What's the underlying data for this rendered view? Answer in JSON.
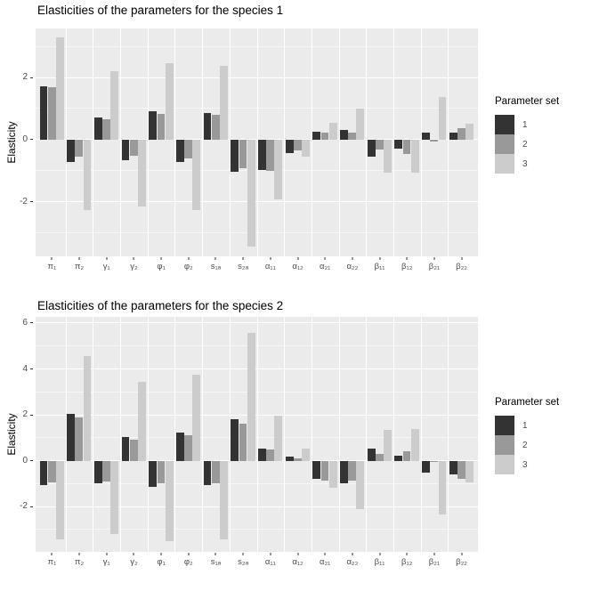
{
  "colors": {
    "panel_bg": "#EBEBEB",
    "grid": "#FFFFFF",
    "axis_text": "#4D4D4D",
    "title_text": "#000000",
    "set1": "#333333",
    "set2": "#999999",
    "set3": "#CCCCCC"
  },
  "legend": {
    "title": "Parameter set",
    "items": [
      {
        "label": "1",
        "color": "#333333"
      },
      {
        "label": "2",
        "color": "#999999"
      },
      {
        "label": "3",
        "color": "#CCCCCC"
      }
    ]
  },
  "chart_data": [
    {
      "type": "bar",
      "title": "Elasticities of the parameters for the species 1",
      "xlabel": "",
      "ylabel": "Elasticity",
      "categories": [
        "π₁",
        "π₂",
        "γ₁",
        "γ₂",
        "φ₁",
        "φ₂",
        "s₁ₐ",
        "s₂ₐ",
        "α₁₁",
        "α₁₂",
        "α₂₁",
        "α₂₂",
        "β₁₁",
        "β₁₂",
        "β₂₁",
        "β₂₂"
      ],
      "series": [
        {
          "name": "1",
          "color": "#333333",
          "values": [
            1.73,
            -0.71,
            0.71,
            -0.65,
            0.9,
            -0.72,
            0.86,
            -1.04,
            -0.99,
            -0.42,
            0.25,
            0.31,
            -0.54,
            -0.28,
            0.22,
            0.22
          ]
        },
        {
          "name": "2",
          "color": "#999999",
          "values": [
            1.68,
            -0.56,
            0.66,
            -0.52,
            0.83,
            -0.6,
            0.8,
            -0.93,
            -1.01,
            -0.35,
            0.22,
            0.22,
            -0.32,
            -0.47,
            -0.06,
            0.37
          ]
        },
        {
          "name": "3",
          "color": "#CCCCCC",
          "values": [
            3.3,
            -2.28,
            2.2,
            -2.15,
            2.46,
            -2.27,
            2.39,
            -3.45,
            -1.93,
            -0.54,
            0.54,
            1.01,
            -1.06,
            -1.06,
            1.38,
            0.51
          ]
        }
      ],
      "ylim": [
        -3.76,
        3.58
      ],
      "yticks": [
        -2,
        0,
        2
      ],
      "yticks_minor": [
        -3,
        -1,
        1,
        3
      ],
      "grid": true,
      "legend_position": "right"
    },
    {
      "type": "bar",
      "title": "Elasticities of the parameters for the species 2",
      "xlabel": "",
      "ylabel": "Elasticity",
      "categories": [
        "π₁",
        "π₂",
        "γ₁",
        "γ₂",
        "φ₁",
        "φ₂",
        "s₁ₐ",
        "s₂ₐ",
        "α₁₁",
        "α₁₂",
        "α₂₁",
        "α₂₂",
        "β₁₁",
        "β₁₂",
        "β₂₁",
        "β₂₂"
      ],
      "series": [
        {
          "name": "1",
          "color": "#333333",
          "values": [
            -1.06,
            2.05,
            -0.99,
            1.05,
            -1.12,
            1.23,
            -1.06,
            1.82,
            0.53,
            0.17,
            -0.78,
            -0.97,
            0.53,
            0.23,
            -0.52,
            -0.6
          ]
        },
        {
          "name": "2",
          "color": "#999999",
          "values": [
            -0.93,
            1.9,
            -0.9,
            0.9,
            -0.97,
            1.1,
            -0.97,
            1.63,
            0.49,
            0.1,
            -0.86,
            -0.86,
            0.3,
            0.43,
            -0.05,
            -0.8
          ]
        },
        {
          "name": "3",
          "color": "#CCCCCC",
          "values": [
            -3.42,
            4.56,
            -3.19,
            3.44,
            -3.51,
            3.75,
            -3.42,
            5.57,
            1.95,
            0.52,
            -1.16,
            -2.09,
            1.36,
            1.4,
            -2.33,
            -0.93
          ]
        }
      ],
      "ylim": [
        -3.97,
        6.27
      ],
      "yticks": [
        -2,
        0,
        2,
        4,
        6
      ],
      "yticks_minor": [
        -3,
        -1,
        1,
        3,
        5
      ],
      "grid": true,
      "legend_position": "right"
    }
  ]
}
